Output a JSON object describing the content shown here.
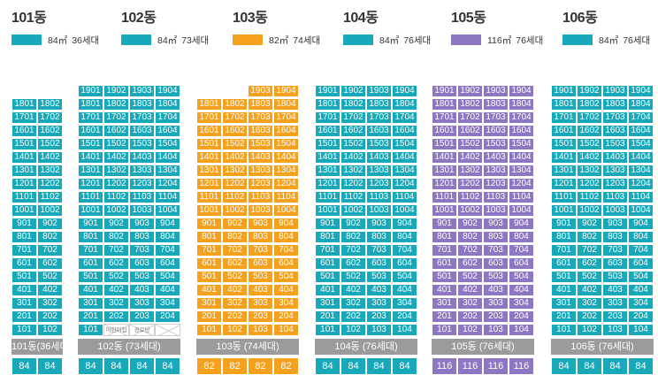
{
  "colors": {
    "teal": "#17a9ba",
    "orange": "#f5a11c",
    "purple": "#8d76c2",
    "gray_bar": "#9b9b9b"
  },
  "buildings": [
    {
      "name": "101동",
      "legend": {
        "size": "84㎡",
        "units": "36세대"
      },
      "color": "teal",
      "cols": 2,
      "rows": [
        [
          "1801",
          "1802"
        ],
        [
          "1701",
          "1702"
        ],
        [
          "1601",
          "1602"
        ],
        [
          "1501",
          "1502"
        ],
        [
          "1401",
          "1402"
        ],
        [
          "1301",
          "1302"
        ],
        [
          "1201",
          "1202"
        ],
        [
          "1101",
          "1102"
        ],
        [
          "1001",
          "1002"
        ],
        [
          "901",
          "902"
        ],
        [
          "801",
          "802"
        ],
        [
          "701",
          "702"
        ],
        [
          "601",
          "602"
        ],
        [
          "501",
          "502"
        ],
        [
          "401",
          "402"
        ],
        [
          "301",
          "302"
        ],
        [
          "201",
          "202"
        ],
        [
          "101",
          "102"
        ]
      ],
      "bar": "101동(36세대)",
      "sizes": [
        "84",
        "84"
      ]
    },
    {
      "name": "102동",
      "legend": {
        "size": "84㎡",
        "units": "73세대"
      },
      "color": "teal",
      "cols": 4,
      "rows": [
        [
          "1901",
          "1902",
          "1903",
          "1904"
        ],
        [
          "1801",
          "1802",
          "1803",
          "1804"
        ],
        [
          "1701",
          "1702",
          "1703",
          "1704"
        ],
        [
          "1601",
          "1602",
          "1603",
          "1604"
        ],
        [
          "1501",
          "1502",
          "1503",
          "1504"
        ],
        [
          "1401",
          "1402",
          "1403",
          "1404"
        ],
        [
          "1301",
          "1302",
          "1303",
          "1304"
        ],
        [
          "1201",
          "1202",
          "1203",
          "1204"
        ],
        [
          "1101",
          "1102",
          "1103",
          "1104"
        ],
        [
          "1001",
          "1002",
          "1003",
          "1004"
        ],
        [
          "901",
          "902",
          "903",
          "904"
        ],
        [
          "801",
          "802",
          "803",
          "804"
        ],
        [
          "701",
          "702",
          "703",
          "704"
        ],
        [
          "601",
          "602",
          "603",
          "604"
        ],
        [
          "501",
          "502",
          "503",
          "504"
        ],
        [
          "401",
          "402",
          "403",
          "404"
        ],
        [
          "301",
          "302",
          "303",
          "304"
        ],
        [
          "201",
          "202",
          "203",
          "204"
        ],
        [
          "101",
          "어린이집",
          "경로당",
          ""
        ]
      ],
      "bar": "102동 (73세대)",
      "sizes": [
        "84",
        "84",
        "84",
        "84"
      ]
    },
    {
      "name": "103동",
      "legend": {
        "size": "82㎡",
        "units": "74세대"
      },
      "color": "orange",
      "cols": 4,
      "rows": [
        [
          "",
          "",
          "1903",
          "1904"
        ],
        [
          "1801",
          "1802",
          "1803",
          "1804"
        ],
        [
          "1701",
          "1702",
          "1703",
          "1704"
        ],
        [
          "1601",
          "1602",
          "1603",
          "1604"
        ],
        [
          "1501",
          "1502",
          "1503",
          "1504"
        ],
        [
          "1401",
          "1402",
          "1403",
          "1404"
        ],
        [
          "1301",
          "1302",
          "1303",
          "1304"
        ],
        [
          "1201",
          "1202",
          "1203",
          "1204"
        ],
        [
          "1101",
          "1102",
          "1103",
          "1104"
        ],
        [
          "1001",
          "1002",
          "1003",
          "1004"
        ],
        [
          "901",
          "902",
          "903",
          "904"
        ],
        [
          "801",
          "802",
          "803",
          "804"
        ],
        [
          "701",
          "702",
          "703",
          "704"
        ],
        [
          "601",
          "602",
          "603",
          "604"
        ],
        [
          "501",
          "502",
          "503",
          "504"
        ],
        [
          "401",
          "402",
          "403",
          "404"
        ],
        [
          "301",
          "302",
          "303",
          "304"
        ],
        [
          "201",
          "202",
          "203",
          "204"
        ],
        [
          "101",
          "102",
          "103",
          "104"
        ]
      ],
      "bar": "103동 (74세대)",
      "sizes": [
        "82",
        "82",
        "82",
        "82"
      ]
    },
    {
      "name": "104동",
      "legend": {
        "size": "84㎡",
        "units": "76세대"
      },
      "color": "teal",
      "cols": 4,
      "rows": [
        [
          "1901",
          "1902",
          "1903",
          "1904"
        ],
        [
          "1801",
          "1802",
          "1803",
          "1804"
        ],
        [
          "1701",
          "1702",
          "1703",
          "1704"
        ],
        [
          "1601",
          "1602",
          "1603",
          "1604"
        ],
        [
          "1501",
          "1502",
          "1503",
          "1504"
        ],
        [
          "1401",
          "1402",
          "1403",
          "1404"
        ],
        [
          "1301",
          "1302",
          "1303",
          "1304"
        ],
        [
          "1201",
          "1202",
          "1203",
          "1204"
        ],
        [
          "1101",
          "1102",
          "1103",
          "1104"
        ],
        [
          "1001",
          "1002",
          "1003",
          "1004"
        ],
        [
          "901",
          "902",
          "903",
          "904"
        ],
        [
          "801",
          "802",
          "803",
          "804"
        ],
        [
          "701",
          "702",
          "703",
          "704"
        ],
        [
          "601",
          "602",
          "603",
          "604"
        ],
        [
          "501",
          "502",
          "503",
          "504"
        ],
        [
          "401",
          "402",
          "403",
          "404"
        ],
        [
          "301",
          "302",
          "303",
          "304"
        ],
        [
          "201",
          "202",
          "203",
          "204"
        ],
        [
          "101",
          "102",
          "103",
          "104"
        ]
      ],
      "bar": "104동 (76세대)",
      "sizes": [
        "84",
        "84",
        "84",
        "84"
      ]
    },
    {
      "name": "105동",
      "legend": {
        "size": "116㎡",
        "units": "76세대"
      },
      "color": "purple",
      "cols": 4,
      "rows": [
        [
          "1901",
          "1902",
          "1903",
          "1904"
        ],
        [
          "1801",
          "1802",
          "1803",
          "1804"
        ],
        [
          "1701",
          "1702",
          "1703",
          "1704"
        ],
        [
          "1601",
          "1602",
          "1603",
          "1604"
        ],
        [
          "1501",
          "1502",
          "1503",
          "1504"
        ],
        [
          "1401",
          "1402",
          "1403",
          "1404"
        ],
        [
          "1301",
          "1302",
          "1303",
          "1304"
        ],
        [
          "1201",
          "1202",
          "1203",
          "1204"
        ],
        [
          "1101",
          "1102",
          "1103",
          "1104"
        ],
        [
          "1001",
          "1002",
          "1003",
          "1004"
        ],
        [
          "901",
          "902",
          "903",
          "904"
        ],
        [
          "801",
          "802",
          "803",
          "804"
        ],
        [
          "701",
          "702",
          "703",
          "704"
        ],
        [
          "601",
          "602",
          "603",
          "604"
        ],
        [
          "501",
          "502",
          "503",
          "504"
        ],
        [
          "401",
          "402",
          "403",
          "404"
        ],
        [
          "301",
          "302",
          "303",
          "304"
        ],
        [
          "201",
          "202",
          "203",
          "204"
        ],
        [
          "101",
          "102",
          "103",
          "104"
        ]
      ],
      "bar": "105동 (76세대)",
      "sizes": [
        "116",
        "116",
        "116",
        "116"
      ]
    },
    {
      "name": "106동",
      "legend": {
        "size": "84㎡",
        "units": "76세대"
      },
      "color": "teal",
      "cols": 4,
      "rows": [
        [
          "1901",
          "1902",
          "1903",
          "1904"
        ],
        [
          "1801",
          "1802",
          "1803",
          "1804"
        ],
        [
          "1701",
          "1702",
          "1703",
          "1704"
        ],
        [
          "1601",
          "1602",
          "1603",
          "1604"
        ],
        [
          "1501",
          "1502",
          "1503",
          "1504"
        ],
        [
          "1401",
          "1402",
          "1403",
          "1404"
        ],
        [
          "1301",
          "1302",
          "1303",
          "1304"
        ],
        [
          "1201",
          "1202",
          "1203",
          "1204"
        ],
        [
          "1101",
          "1102",
          "1103",
          "1104"
        ],
        [
          "1001",
          "1002",
          "1003",
          "1004"
        ],
        [
          "901",
          "902",
          "903",
          "904"
        ],
        [
          "801",
          "802",
          "803",
          "804"
        ],
        [
          "701",
          "702",
          "703",
          "704"
        ],
        [
          "601",
          "602",
          "603",
          "604"
        ],
        [
          "501",
          "502",
          "503",
          "504"
        ],
        [
          "401",
          "402",
          "403",
          "404"
        ],
        [
          "301",
          "302",
          "303",
          "304"
        ],
        [
          "201",
          "202",
          "203",
          "204"
        ],
        [
          "101",
          "102",
          "103",
          "104"
        ]
      ],
      "bar": "106동 (76세대)",
      "sizes": [
        "84",
        "84",
        "84",
        "84"
      ]
    }
  ]
}
